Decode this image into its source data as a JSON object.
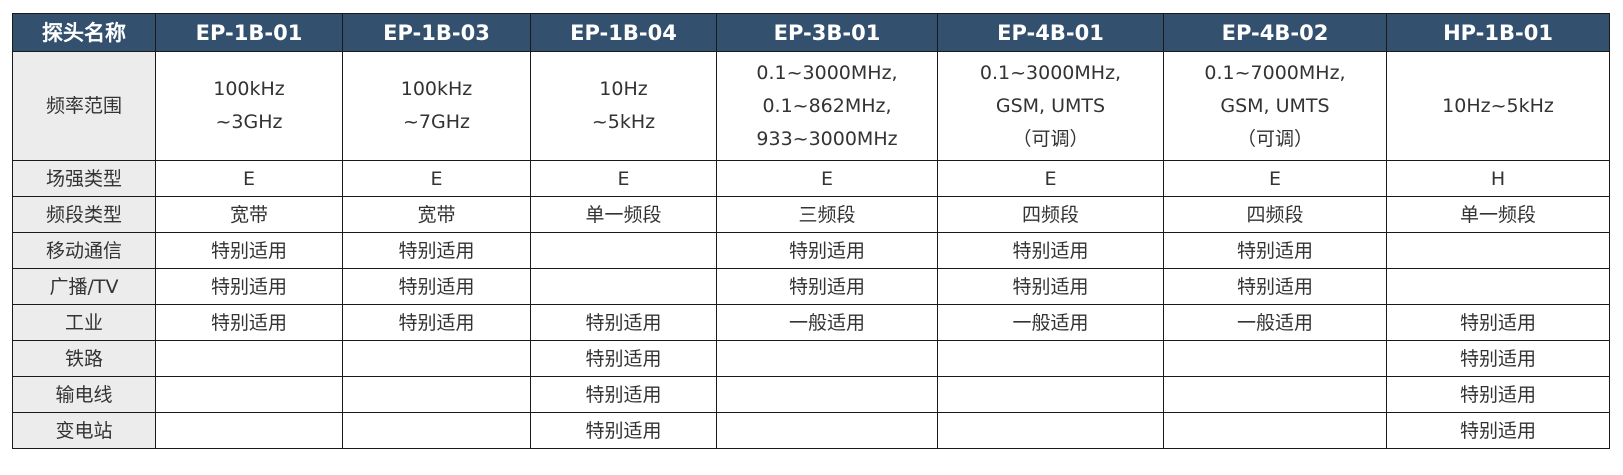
{
  "header": [
    "探头名称",
    "EP-1B-01",
    "EP-1B-03",
    "EP-1B-04",
    "EP-3B-01",
    "EP-4B-01",
    "EP-4B-02",
    "HP-1B-01"
  ],
  "rows": [
    {
      "label": "频率范围",
      "cells": [
        [
          "100kHz",
          "~3GHz"
        ],
        [
          "100kHz",
          "~7GHz"
        ],
        [
          "10Hz",
          "~5kHz"
        ],
        [
          "0.1~3000MHz,",
          "0.1~862MHz,",
          "933~3000MHz"
        ],
        [
          "0.1~3000MHz,",
          "GSM, UMTS",
          "（可调）"
        ],
        [
          "0.1~7000MHz,",
          "GSM, UMTS",
          "（可调）"
        ],
        [
          "10Hz~5kHz"
        ]
      ]
    },
    {
      "label": "场强类型",
      "cells": [
        [
          "E"
        ],
        [
          "E"
        ],
        [
          "E"
        ],
        [
          "E"
        ],
        [
          "E"
        ],
        [
          "E"
        ],
        [
          "H"
        ]
      ]
    },
    {
      "label": "频段类型",
      "cells": [
        [
          "宽带"
        ],
        [
          "宽带"
        ],
        [
          "单一频段"
        ],
        [
          "三频段"
        ],
        [
          "四频段"
        ],
        [
          "四频段"
        ],
        [
          "单一频段"
        ]
      ]
    },
    {
      "label": "移动通信",
      "cells": [
        [
          "特别适用"
        ],
        [
          "特别适用"
        ],
        [
          ""
        ],
        [
          "特别适用"
        ],
        [
          "特别适用"
        ],
        [
          "特别适用"
        ],
        [
          ""
        ]
      ]
    },
    {
      "label": "广播/TV",
      "cells": [
        [
          "特别适用"
        ],
        [
          "特别适用"
        ],
        [
          ""
        ],
        [
          "特别适用"
        ],
        [
          "特别适用"
        ],
        [
          "特别适用"
        ],
        [
          ""
        ]
      ]
    },
    {
      "label": "工业",
      "cells": [
        [
          "特别适用"
        ],
        [
          "特别适用"
        ],
        [
          "特别适用"
        ],
        [
          "一般适用"
        ],
        [
          "一般适用"
        ],
        [
          "一般适用"
        ],
        [
          "特别适用"
        ]
      ]
    },
    {
      "label": "铁路",
      "cells": [
        [
          ""
        ],
        [
          ""
        ],
        [
          "特别适用"
        ],
        [
          ""
        ],
        [
          ""
        ],
        [
          ""
        ],
        [
          "特别适用"
        ]
      ]
    },
    {
      "label": "输电线",
      "cells": [
        [
          ""
        ],
        [
          ""
        ],
        [
          "特别适用"
        ],
        [
          ""
        ],
        [
          ""
        ],
        [
          ""
        ],
        [
          "特别适用"
        ]
      ]
    },
    {
      "label": "变电站",
      "cells": [
        [
          ""
        ],
        [
          ""
        ],
        [
          "特别适用"
        ],
        [
          ""
        ],
        [
          ""
        ],
        [
          ""
        ],
        [
          "特别适用"
        ]
      ]
    }
  ],
  "colors": {
    "header_bg": "#33506e",
    "row_header_bg": "#ececec"
  }
}
